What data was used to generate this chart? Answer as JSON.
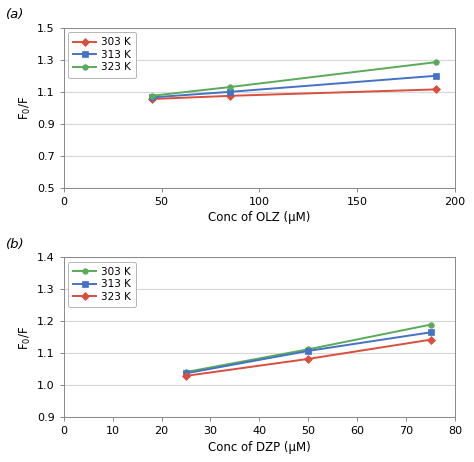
{
  "plot_a": {
    "label": "(a)",
    "x": [
      45,
      85,
      190
    ],
    "series": [
      {
        "label": "303 K",
        "color": "#d94f3d",
        "marker": "D",
        "y": [
          1.055,
          1.075,
          1.115
        ]
      },
      {
        "label": "313 K",
        "color": "#4472c4",
        "marker": "s",
        "y": [
          1.065,
          1.1,
          1.2
        ]
      },
      {
        "label": "323 K",
        "color": "#5aaa5a",
        "marker": "o",
        "y": [
          1.075,
          1.13,
          1.285
        ]
      }
    ],
    "xlabel": "Conc of OLZ (μM)",
    "ylabel": "F$_0$/F",
    "xlim": [
      0,
      200
    ],
    "ylim": [
      0.5,
      1.5
    ],
    "yticks": [
      0.5,
      0.7,
      0.9,
      1.1,
      1.3,
      1.5
    ],
    "xticks": [
      0,
      50,
      100,
      150,
      200
    ]
  },
  "plot_b": {
    "label": "(b)",
    "x": [
      25,
      50,
      75
    ],
    "series": [
      {
        "label": "303 K",
        "color": "#5aaa5a",
        "marker": "o",
        "y": [
          1.042,
          1.113,
          1.19
        ]
      },
      {
        "label": "313 K",
        "color": "#4472c4",
        "marker": "s",
        "y": [
          1.038,
          1.108,
          1.166
        ]
      },
      {
        "label": "323 K",
        "color": "#d94f3d",
        "marker": "D",
        "y": [
          1.03,
          1.083,
          1.143
        ]
      }
    ],
    "xlabel": "Conc of DZP (μM)",
    "ylabel": "F$_0$/F",
    "xlim": [
      0,
      80
    ],
    "ylim": [
      0.9,
      1.4
    ],
    "yticks": [
      0.9,
      1.0,
      1.1,
      1.2,
      1.3,
      1.4
    ],
    "xticks": [
      0,
      10,
      20,
      30,
      40,
      50,
      60,
      70,
      80
    ]
  },
  "bg_color": "#ffffff",
  "plot_bg_color": "#ffffff",
  "grid_color": "#d8d8d8",
  "spine_color": "#888888"
}
